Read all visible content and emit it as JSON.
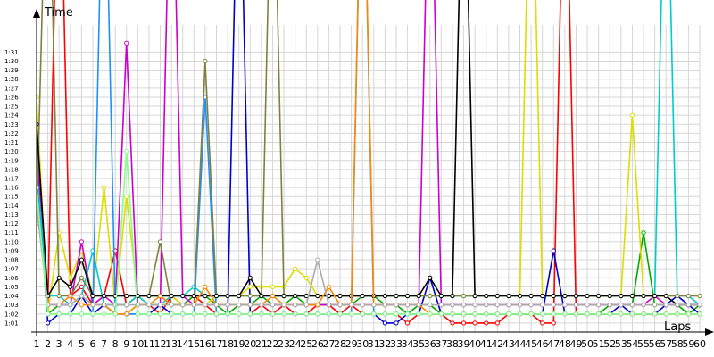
{
  "chart_data": {
    "type": "line",
    "xlabel": "Laps",
    "ylabel": "Time",
    "grid": true,
    "xlim": [
      1,
      60
    ],
    "ylim_seconds": [
      60,
      94
    ],
    "x_ticks": [
      1,
      2,
      3,
      4,
      5,
      6,
      7,
      8,
      9,
      10,
      11,
      12,
      13,
      14,
      15,
      16,
      17,
      18,
      19,
      20,
      21,
      22,
      23,
      24,
      25,
      26,
      27,
      28,
      29,
      30,
      31,
      32,
      33,
      34,
      35,
      36,
      37,
      38,
      39,
      40,
      41,
      42,
      43,
      44,
      45,
      46,
      47,
      48,
      49,
      50,
      51,
      52,
      53,
      54,
      55,
      56,
      57,
      58,
      59,
      60
    ],
    "y_ticks": [
      "1:01",
      "1:02",
      "1:03",
      "1:04",
      "1:05",
      "1:06",
      "1:07",
      "1:08",
      "1:09",
      "1:10",
      "1:11",
      "1:12",
      "1:13",
      "1:14",
      "1:15",
      "1:16",
      "1:17",
      "1:18",
      "1:19",
      "1:20",
      "1:21",
      "1:22",
      "1:23",
      "1:24",
      "1:25",
      "1:26",
      "1:27",
      "1:28",
      "1:29",
      "1:30",
      "1:31"
    ],
    "y_tick_seconds": [
      61,
      62,
      63,
      64,
      65,
      66,
      67,
      68,
      69,
      70,
      71,
      72,
      73,
      74,
      75,
      76,
      77,
      78,
      79,
      80,
      81,
      82,
      83,
      84,
      85,
      86,
      87,
      88,
      89,
      90,
      91
    ],
    "series": [
      {
        "color": "#ff0000",
        "values": [
          82,
          63,
          120,
          64,
          65,
          63,
          64,
          69,
          63,
          64,
          63,
          62,
          64,
          63,
          64,
          63,
          62,
          62,
          62,
          62,
          63,
          62,
          63,
          62,
          62,
          63,
          63,
          62,
          63,
          62,
          62,
          62,
          62,
          61,
          62,
          62,
          62,
          61,
          61,
          61,
          61,
          61,
          62,
          62,
          62,
          61,
          61,
          120,
          62,
          62,
          62,
          62,
          62,
          62,
          62,
          62,
          62,
          62,
          62,
          62
        ]
      },
      {
        "color": "#00aa00",
        "values": [
          80,
          62,
          63,
          63,
          64,
          63,
          63,
          63,
          63,
          64,
          64,
          64,
          63,
          63,
          64,
          64,
          63,
          62,
          63,
          63,
          64,
          63,
          63,
          64,
          63,
          63,
          63,
          63,
          63,
          64,
          64,
          63,
          63,
          62,
          63,
          63,
          62,
          62,
          62,
          62,
          62,
          62,
          62,
          62,
          62,
          62,
          62,
          62,
          62,
          62,
          62,
          63,
          63,
          63,
          71,
          63,
          63,
          63,
          62,
          63
        ]
      },
      {
        "color": "#0000cc",
        "values": [
          79,
          61,
          62,
          62,
          64,
          62,
          63,
          62,
          62,
          62,
          62,
          63,
          62,
          62,
          62,
          62,
          62,
          62,
          120,
          62,
          62,
          62,
          62,
          62,
          62,
          62,
          62,
          62,
          62,
          62,
          62,
          61,
          61,
          62,
          62,
          66,
          62,
          62,
          62,
          62,
          62,
          62,
          62,
          62,
          62,
          62,
          69,
          62,
          62,
          62,
          62,
          62,
          63,
          62,
          62,
          62,
          63,
          64,
          63,
          62
        ]
      },
      {
        "color": "#dddd00",
        "values": [
          86,
          62,
          71,
          66,
          69,
          64,
          76,
          63,
          75,
          64,
          63,
          63,
          64,
          63,
          63,
          63,
          64,
          64,
          64,
          65,
          65,
          65,
          65,
          67,
          66,
          64,
          64,
          64,
          64,
          64,
          64,
          64,
          64,
          64,
          64,
          64,
          64,
          64,
          64,
          64,
          64,
          64,
          64,
          64,
          120,
          64,
          64,
          64,
          64,
          64,
          64,
          64,
          64,
          84,
          64,
          64,
          64,
          64,
          64,
          64
        ]
      },
      {
        "color": "#cc00cc",
        "values": [
          81,
          63,
          63,
          63,
          70,
          63,
          64,
          63,
          92,
          63,
          63,
          63,
          120,
          64,
          63,
          63,
          63,
          63,
          63,
          63,
          63,
          63,
          63,
          63,
          63,
          63,
          63,
          63,
          63,
          63,
          63,
          63,
          63,
          63,
          63,
          120,
          63,
          63,
          63,
          63,
          63,
          63,
          63,
          63,
          63,
          63,
          63,
          63,
          63,
          63,
          63,
          63,
          63,
          63,
          63,
          64,
          63,
          63,
          63,
          63
        ]
      },
      {
        "color": "#00cccc",
        "values": [
          78,
          64,
          64,
          63,
          64,
          69,
          63,
          63,
          63,
          64,
          63,
          63,
          64,
          64,
          65,
          64,
          64,
          64,
          64,
          64,
          64,
          64,
          64,
          64,
          64,
          64,
          64,
          64,
          64,
          64,
          64,
          64,
          64,
          64,
          64,
          64,
          64,
          64,
          64,
          64,
          64,
          64,
          64,
          64,
          64,
          64,
          64,
          64,
          64,
          64,
          64,
          64,
          64,
          64,
          64,
          64,
          120,
          64,
          64,
          63
        ]
      },
      {
        "color": "#1e90ff",
        "values": [
          77,
          62,
          62,
          62,
          62,
          62,
          120,
          62,
          62,
          62,
          62,
          62,
          62,
          62,
          62,
          86,
          62,
          62,
          62,
          62,
          62,
          62,
          62,
          62,
          62,
          62,
          62,
          62,
          62,
          120,
          62,
          62,
          62,
          62,
          62,
          62,
          62,
          62,
          62,
          62,
          62,
          62,
          62,
          62,
          62,
          62,
          62,
          62,
          62,
          62,
          62,
          62,
          62,
          62,
          62,
          62,
          62,
          62,
          62,
          62
        ]
      },
      {
        "color": "#808040",
        "values": [
          72,
          120,
          64,
          64,
          66,
          64,
          64,
          64,
          64,
          64,
          64,
          70,
          63,
          63,
          63,
          90,
          64,
          64,
          64,
          64,
          64,
          120,
          64,
          64,
          64,
          64,
          64,
          64,
          64,
          64,
          64,
          64,
          64,
          64,
          64,
          64,
          64,
          64,
          64,
          64,
          64,
          64,
          64,
          64,
          64,
          64,
          64,
          64,
          64,
          64,
          64,
          64,
          64,
          64,
          64,
          64,
          64,
          64,
          64,
          64
        ]
      },
      {
        "color": "#000000",
        "values": [
          83,
          64,
          66,
          65,
          68,
          64,
          64,
          64,
          64,
          64,
          64,
          64,
          64,
          64,
          64,
          64,
          64,
          64,
          64,
          66,
          64,
          64,
          64,
          64,
          64,
          64,
          64,
          64,
          64,
          64,
          64,
          64,
          64,
          64,
          64,
          66,
          64,
          64,
          120,
          64,
          64,
          64,
          64,
          64,
          64,
          64,
          64,
          64,
          64,
          64,
          64,
          64,
          64,
          64,
          64,
          64,
          64,
          63,
          63,
          63
        ]
      },
      {
        "color": "#ff8800",
        "values": [
          75,
          63,
          63,
          64,
          63,
          63,
          63,
          62,
          62,
          63,
          63,
          64,
          63,
          63,
          63,
          65,
          63,
          63,
          63,
          63,
          63,
          64,
          63,
          63,
          63,
          63,
          65,
          63,
          63,
          120,
          63,
          63,
          63,
          63,
          63,
          62,
          62,
          62,
          62,
          62,
          62,
          62,
          62,
          62,
          62,
          62,
          62,
          62,
          62,
          62,
          62,
          62,
          62,
          62,
          62,
          62,
          62,
          62,
          62,
          62
        ]
      },
      {
        "color": "#aaaaaa",
        "values": [
          74,
          63,
          63,
          63,
          64,
          63,
          63,
          63,
          63,
          63,
          63,
          63,
          63,
          63,
          63,
          63,
          63,
          63,
          63,
          63,
          63,
          63,
          63,
          63,
          63,
          68,
          63,
          63,
          63,
          63,
          63,
          63,
          63,
          63,
          63,
          63,
          63,
          63,
          63,
          63,
          63,
          63,
          63,
          63,
          63,
          63,
          63,
          63,
          63,
          63,
          63,
          63,
          63,
          63,
          63,
          63,
          63,
          63,
          63,
          63
        ]
      },
      {
        "color": "#88ff88",
        "values": [
          76,
          62,
          62,
          62,
          62,
          62,
          62,
          62,
          80,
          62,
          62,
          62,
          62,
          62,
          62,
          62,
          62,
          62,
          62,
          62,
          62,
          62,
          62,
          62,
          62,
          62,
          62,
          62,
          62,
          62,
          62,
          62,
          62,
          62,
          62,
          62,
          62,
          62,
          62,
          62,
          62,
          62,
          62,
          62,
          62,
          62,
          62,
          62,
          62,
          62,
          62,
          62,
          62,
          62,
          62,
          62,
          62,
          62,
          62,
          62
        ]
      }
    ]
  }
}
